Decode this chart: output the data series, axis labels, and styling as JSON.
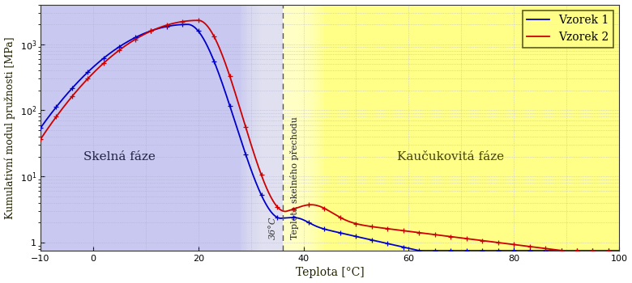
{
  "xlabel": "Teplota [°C]",
  "ylabel": "Kumulativní modul pružnosti [MPa]",
  "xlim": [
    -10,
    100
  ],
  "ylim": [
    0.75,
    4000
  ],
  "transition_temp": 36,
  "transition_label_short": "36°C",
  "transition_label_long": "Teplota skelného přechodu",
  "glass_phase_label": "Skelná fáze",
  "rubber_phase_label": "Kaučukovitá fáze",
  "legend_entries": [
    "Vzorek 1",
    "Vzorek 2"
  ],
  "color_v1": "#0000cc",
  "color_v2": "#cc0000",
  "bg_glass": "#c8c8f0",
  "bg_rubber": "#ffff88",
  "bg_white_glow": "#ffffff",
  "grid_color": "#bbbbdd",
  "grid_color_rubber": "#dddd99",
  "marker_size": 3,
  "line_width": 1.3,
  "xticks": [
    -10,
    0,
    20,
    40,
    60,
    80,
    100
  ],
  "yticks": [
    1,
    10,
    100,
    1000
  ],
  "ytick_labels": [
    "1",
    "10$^1$",
    "10$^2$",
    "10$^3$"
  ]
}
